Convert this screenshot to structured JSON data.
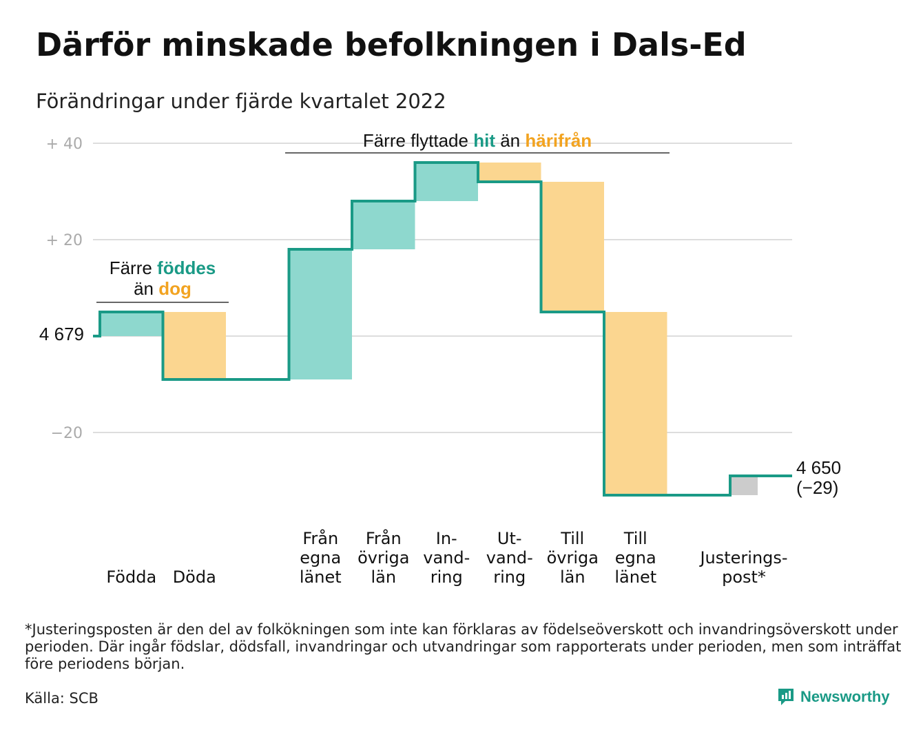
{
  "title": "Därför minskade befolkningen i Dals-Ed",
  "subtitle": "Förändringar under fjärde kvartalet 2022",
  "colors": {
    "line": "#1a9a86",
    "increase": "#8ed8ce",
    "decrease": "#fbd690",
    "adjustment": "#cccccc",
    "grid": "#dddddd",
    "accent_green": "#1a9a86",
    "accent_orange": "#f2a320"
  },
  "annotations": {
    "births": {
      "line1_pre": "Färre ",
      "line1_hl": "föddes",
      "line2_pre": "än ",
      "line2_hl": "dog"
    },
    "migration": {
      "pre": "Färre flyttade ",
      "hl1": "hit",
      "mid": " än ",
      "hl2": "härifrån"
    }
  },
  "chart_data": {
    "type": "waterfall",
    "start_value": 4679,
    "start_label": "4 679",
    "end_label_line1": "4 650",
    "end_label_line2": "(−29)",
    "ylim": [
      -35,
      42
    ],
    "yticks": [
      {
        "value": 40,
        "label": "+ 40"
      },
      {
        "value": 20,
        "label": "+ 20"
      },
      {
        "value": 0,
        "label": ""
      },
      {
        "value": -20,
        "label": "−20"
      }
    ],
    "steps": [
      {
        "label": [
          "",
          "",
          "Födda"
        ],
        "change": 5,
        "kind": "increase"
      },
      {
        "label": [
          "",
          "",
          "Döda"
        ],
        "change": -14,
        "kind": "decrease"
      },
      {
        "label": [
          "",
          "",
          ""
        ],
        "change": 0,
        "kind": "spacer"
      },
      {
        "label": [
          "Från",
          "egna",
          "länet"
        ],
        "change": 27,
        "kind": "increase"
      },
      {
        "label": [
          "Från",
          "övriga",
          "län"
        ],
        "change": 10,
        "kind": "increase"
      },
      {
        "label": [
          "In-",
          "vand-",
          "ring"
        ],
        "change": 8,
        "kind": "increase"
      },
      {
        "label": [
          "Ut-",
          "vand-",
          "ring"
        ],
        "change": -4,
        "kind": "decrease"
      },
      {
        "label": [
          "Till",
          "övriga",
          "län"
        ],
        "change": -27,
        "kind": "decrease"
      },
      {
        "label": [
          "Till",
          "egna",
          "länet"
        ],
        "change": -38,
        "kind": "decrease"
      },
      {
        "label": [
          "",
          "Justerings-",
          "post*"
        ],
        "change": 4,
        "kind": "adjustment"
      }
    ]
  },
  "footnote": "*Justeringsposten är den del av folkökningen som inte kan förklaras av födelseöverskott och invandringsöverskott under perioden. Där ingår födslar, dödsfall, invandringar och utvandringar som rapporterats under perioden, men som inträffat före periodens början.",
  "source": "Källa: SCB",
  "brand": "Newsworthy"
}
